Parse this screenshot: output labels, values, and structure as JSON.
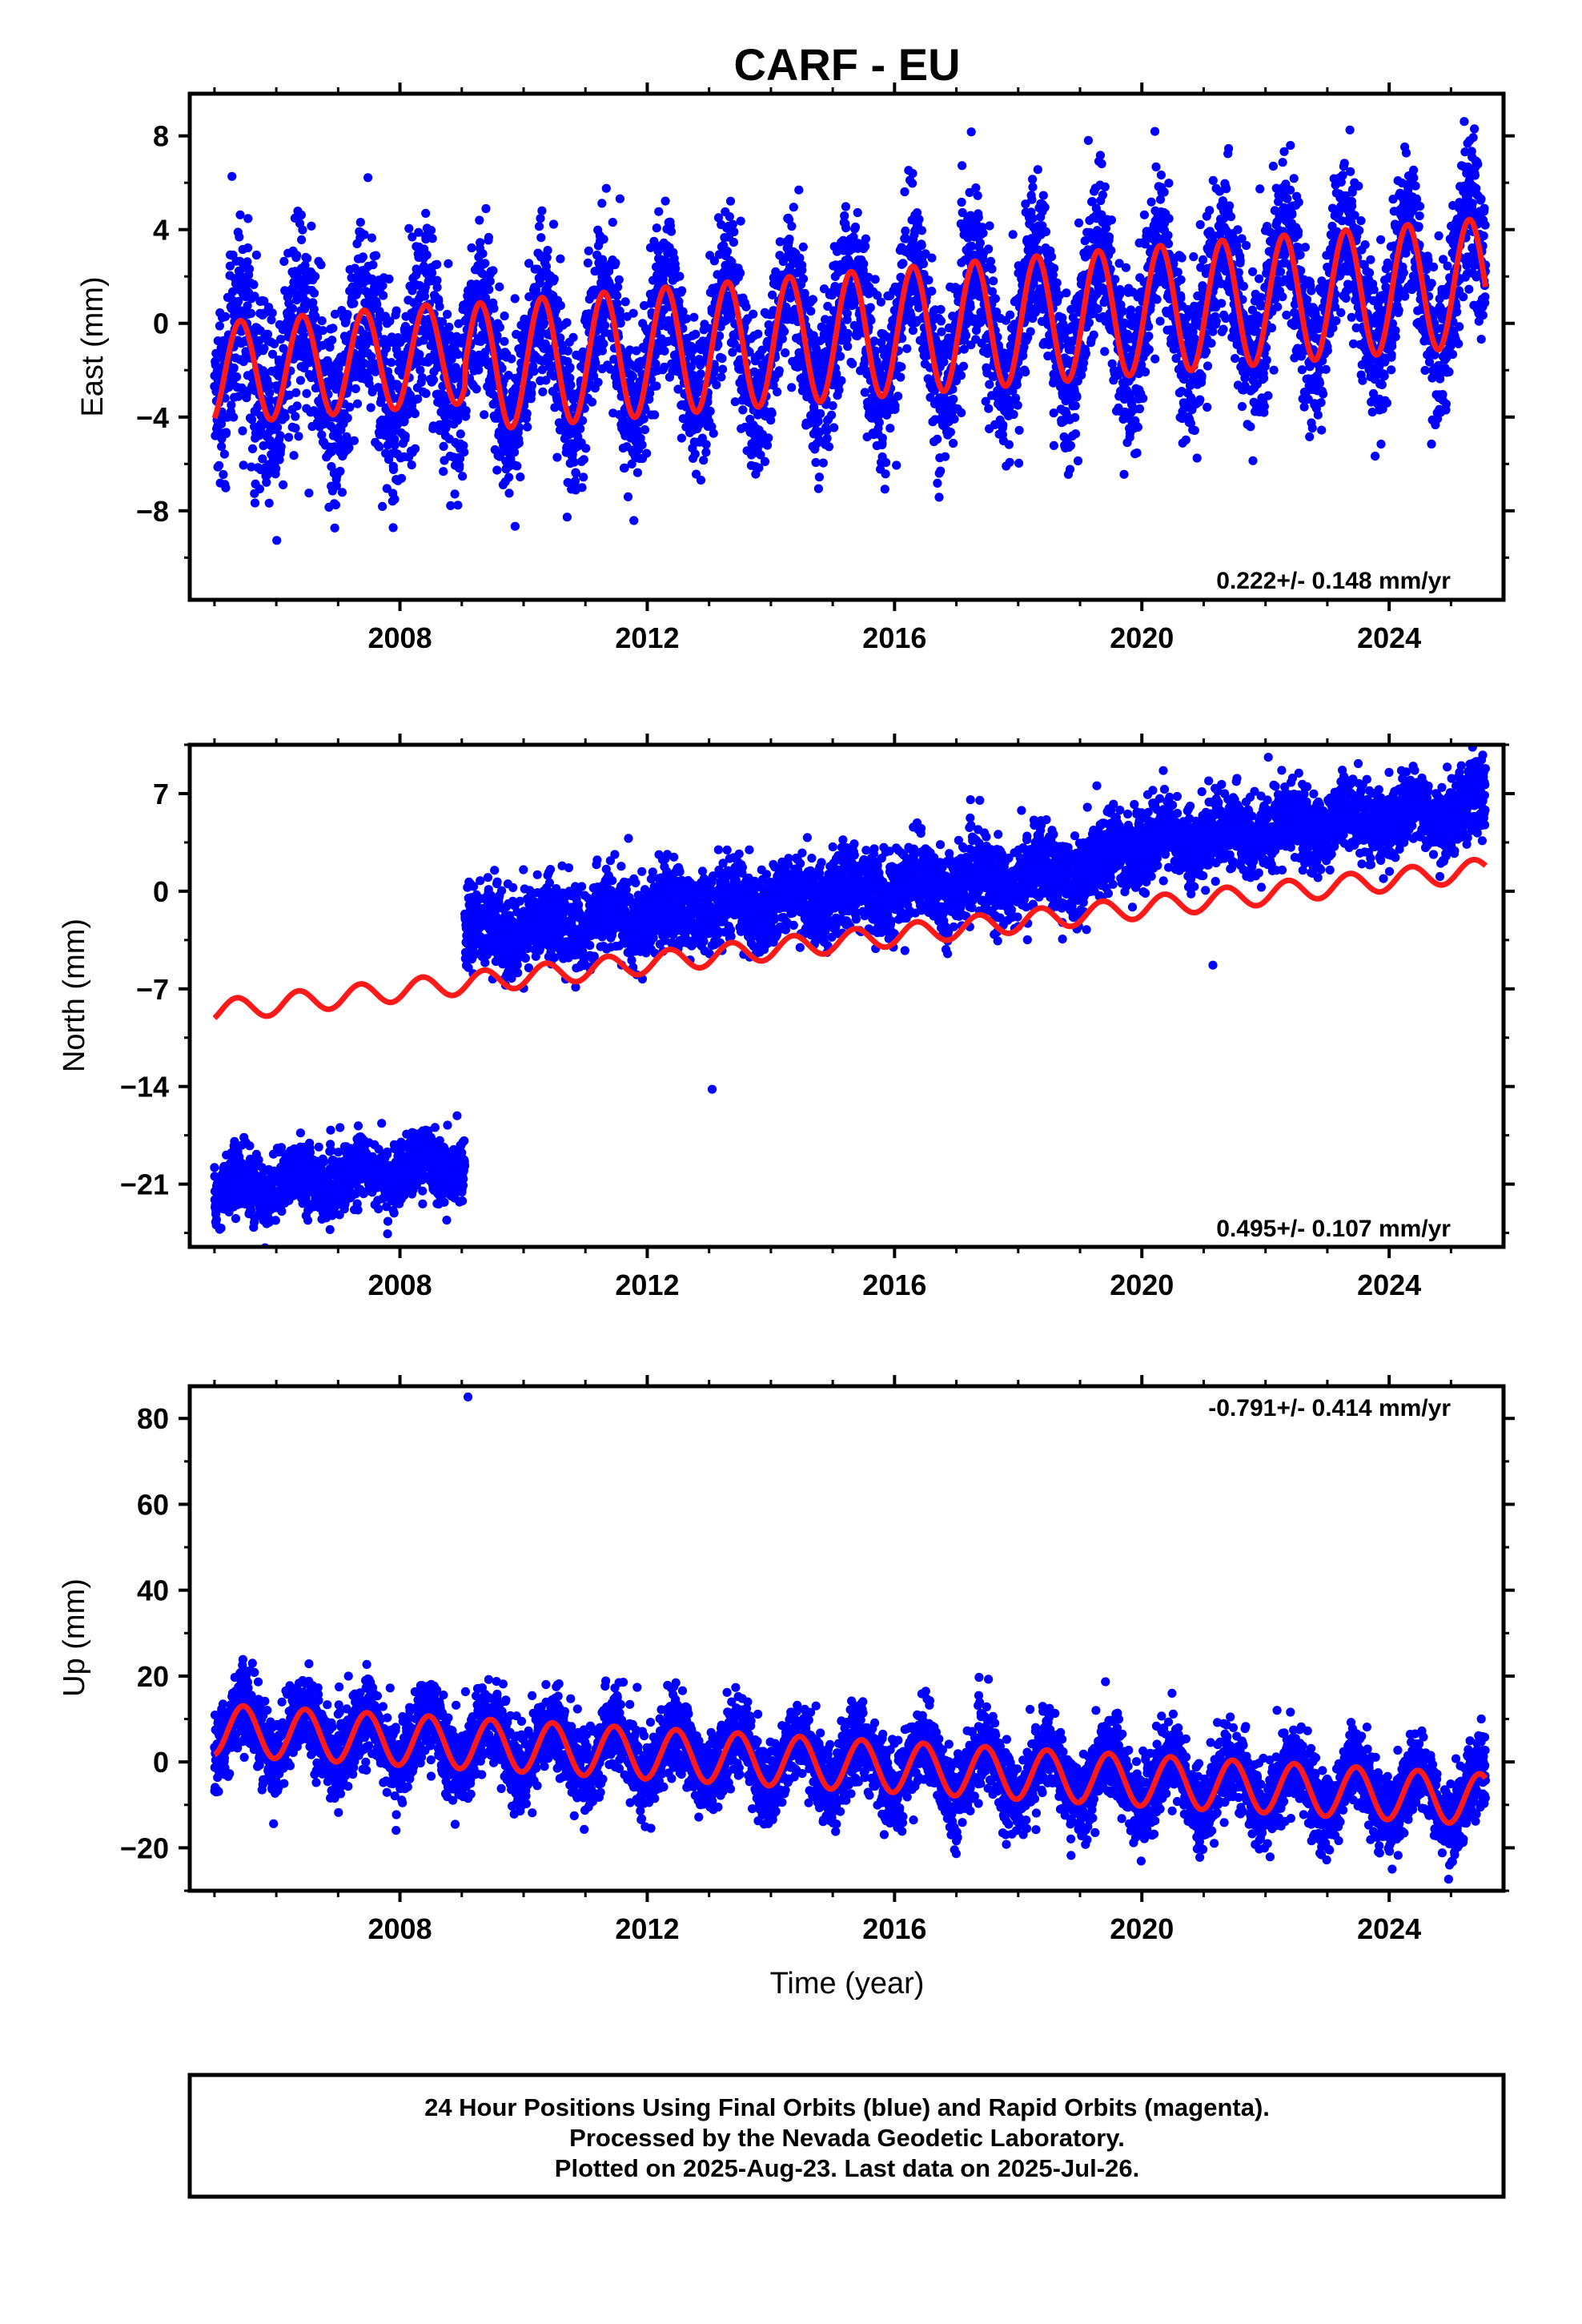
{
  "figure": {
    "title": "CARF - EU",
    "footer_lines": [
      "24 Hour Positions Using Final Orbits (blue) and Rapid Orbits (magenta).",
      "Processed by the Nevada Geodetic Laboratory.",
      "Plotted on 2025-Aug-23. Last data on 2025-Jul-26."
    ],
    "colors": {
      "points": "#0000ff",
      "model": "#ff1a1a",
      "frame": "#000000"
    }
  },
  "chart_data": [
    {
      "type": "scatter",
      "component": "east",
      "ylabel": "East (mm)",
      "xlabel": "",
      "xlim": [
        2004.6,
        2025.85
      ],
      "ylim": [
        -11.8,
        9.8
      ],
      "xticks": [
        2008,
        2012,
        2016,
        2020,
        2024
      ],
      "yticks": [
        -8,
        -4,
        0,
        4,
        8
      ],
      "rate_text": "0.222+/- 0.148 mm/yr",
      "rate_position": "bottom-right",
      "data_range": [
        2005.0,
        2025.56
      ],
      "scatter_sd": 1.6,
      "model": {
        "segments": [
          {
            "t_start": 2005.0,
            "t_end": 2009.05,
            "offset": -2.15,
            "rate": 0.222,
            "amp_sin": 1.05,
            "amp_cos": -1.9
          },
          {
            "t_start": 2009.05,
            "t_end": 2025.56,
            "offset": -1.9,
            "rate": 0.222,
            "amp_sin": 2.6,
            "amp_cos": -0.8
          }
        ]
      }
    },
    {
      "type": "scatter",
      "component": "north",
      "ylabel": "North (mm)",
      "xlabel": "",
      "xlim": [
        2004.6,
        2025.85
      ],
      "ylim": [
        -25.5,
        10.5
      ],
      "xticks": [
        2008,
        2012,
        2016,
        2020,
        2024
      ],
      "yticks": [
        -21,
        -14,
        -7,
        0,
        7
      ],
      "rate_text": "0.495+/- 0.107 mm/yr",
      "rate_position": "bottom-right",
      "model": {
        "segments": [
          {
            "t_start": 2005.0,
            "t_end": 2025.56,
            "offset": -8.6,
            "rate": 0.495,
            "amp_sin": 0.6,
            "amp_cos": -0.5
          }
        ]
      },
      "point_groups": [
        {
          "t_start": 2005.0,
          "t_end": 2009.05,
          "offset": -21.5,
          "rate": 0.5,
          "sd": 1.1
        },
        {
          "t_start": 2009.05,
          "t_end": 2019.5,
          "offset": -3.0,
          "rate": 0.45,
          "sd": 1.4
        },
        {
          "t_start": 2019.5,
          "t_end": 2025.56,
          "offset": 3.2,
          "rate": 0.45,
          "sd": 1.3
        }
      ],
      "outliers": [
        {
          "x": 2013.05,
          "y": -14.2
        },
        {
          "x": 2021.15,
          "y": -5.3
        }
      ]
    },
    {
      "type": "scatter",
      "component": "up",
      "ylabel": "Up (mm)",
      "xlabel": "Time (year)",
      "xlim": [
        2004.6,
        2025.85
      ],
      "ylim": [
        -30,
        87.5
      ],
      "xticks": [
        2008,
        2012,
        2016,
        2020,
        2024
      ],
      "yticks": [
        -20,
        0,
        20,
        40,
        60,
        80
      ],
      "rate_text": "-0.791+/- 0.414 mm/yr",
      "rate_position": "top-right",
      "data_range": [
        2005.0,
        2025.56
      ],
      "scatter_sd": 4.5,
      "model": {
        "segments": [
          {
            "t_start": 2005.0,
            "t_end": 2025.56,
            "offset": 7.5,
            "rate": -0.791,
            "amp_sin": 1.2,
            "amp_cos": -5.8
          }
        ]
      },
      "outliers": [
        {
          "x": 2009.1,
          "y": 85
        }
      ]
    }
  ]
}
